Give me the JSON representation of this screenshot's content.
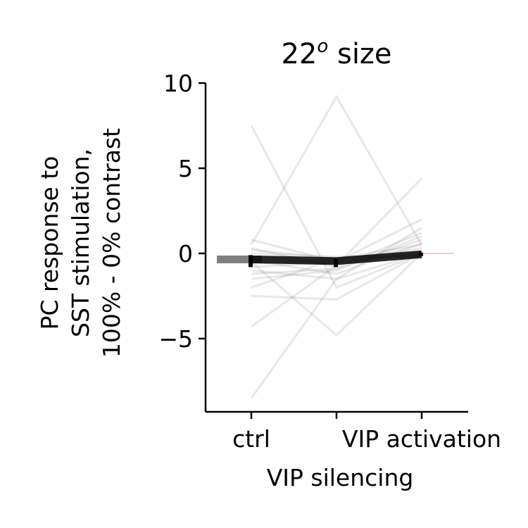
{
  "chart_data": {
    "type": "line",
    "title_main": "22",
    "title_sup": "o",
    "title_rest": " size",
    "xlabel": "VIP silencing",
    "ylabel_lines": [
      "PC response to",
      "SST stimulation,",
      "100% - 0% contrast"
    ],
    "categories": [
      "ctrl",
      "VIP silencing",
      "VIP activation"
    ],
    "xtick_labels": [
      "ctrl",
      "",
      "VIP activation"
    ],
    "ylim": [
      -9.3,
      10
    ],
    "yticks": [
      10,
      5,
      0,
      -5
    ],
    "ytick_labels": [
      "10",
      "5",
      "0",
      "−5"
    ],
    "grid": false,
    "mean_values": [
      -0.35,
      -0.45,
      -0.05
    ],
    "error_bars": [
      {
        "category": "ctrl",
        "low": -0.8,
        "high": -0.1
      },
      {
        "category": "VIP silencing",
        "low": -0.8,
        "high": -0.3
      },
      {
        "category": "VIP activation",
        "low": -0.15,
        "high": 0.05
      }
    ],
    "reference_line": {
      "value": 0,
      "color": "#e07070"
    },
    "colors": {
      "individual": "#808080",
      "mean": "#000000",
      "ctrl_bar": "#808080"
    },
    "series": [
      {
        "values": [
          7.5,
          -2.0,
          0.0
        ]
      },
      {
        "values": [
          -8.5,
          -1.5,
          0.0
        ]
      },
      {
        "values": [
          -4.3,
          -0.7,
          4.4
        ]
      },
      {
        "values": [
          0.5,
          9.2,
          0.5
        ]
      },
      {
        "values": [
          -0.5,
          -4.8,
          0.0
        ]
      },
      {
        "values": [
          -2.5,
          -2.7,
          0.0
        ]
      },
      {
        "values": [
          0.8,
          -0.5,
          2.0
        ]
      },
      {
        "values": [
          -1.0,
          -1.5,
          1.5
        ]
      },
      {
        "values": [
          -1.5,
          -1.0,
          1.0
        ]
      },
      {
        "values": [
          -2.0,
          -0.3,
          0.5
        ]
      },
      {
        "values": [
          0.3,
          -0.8,
          1.2
        ]
      },
      {
        "values": [
          -0.6,
          -0.4,
          0.3
        ]
      },
      {
        "values": [
          -0.2,
          -0.6,
          0.1
        ]
      },
      {
        "values": [
          -1.2,
          -0.9,
          0.8
        ]
      },
      {
        "values": [
          0.0,
          -0.2,
          -0.2
        ]
      },
      {
        "values": [
          -0.8,
          -0.5,
          0.0
        ]
      },
      {
        "values": [
          -0.4,
          -1.2,
          0.6
        ]
      },
      {
        "values": [
          0.2,
          -0.3,
          -0.1
        ]
      }
    ]
  }
}
